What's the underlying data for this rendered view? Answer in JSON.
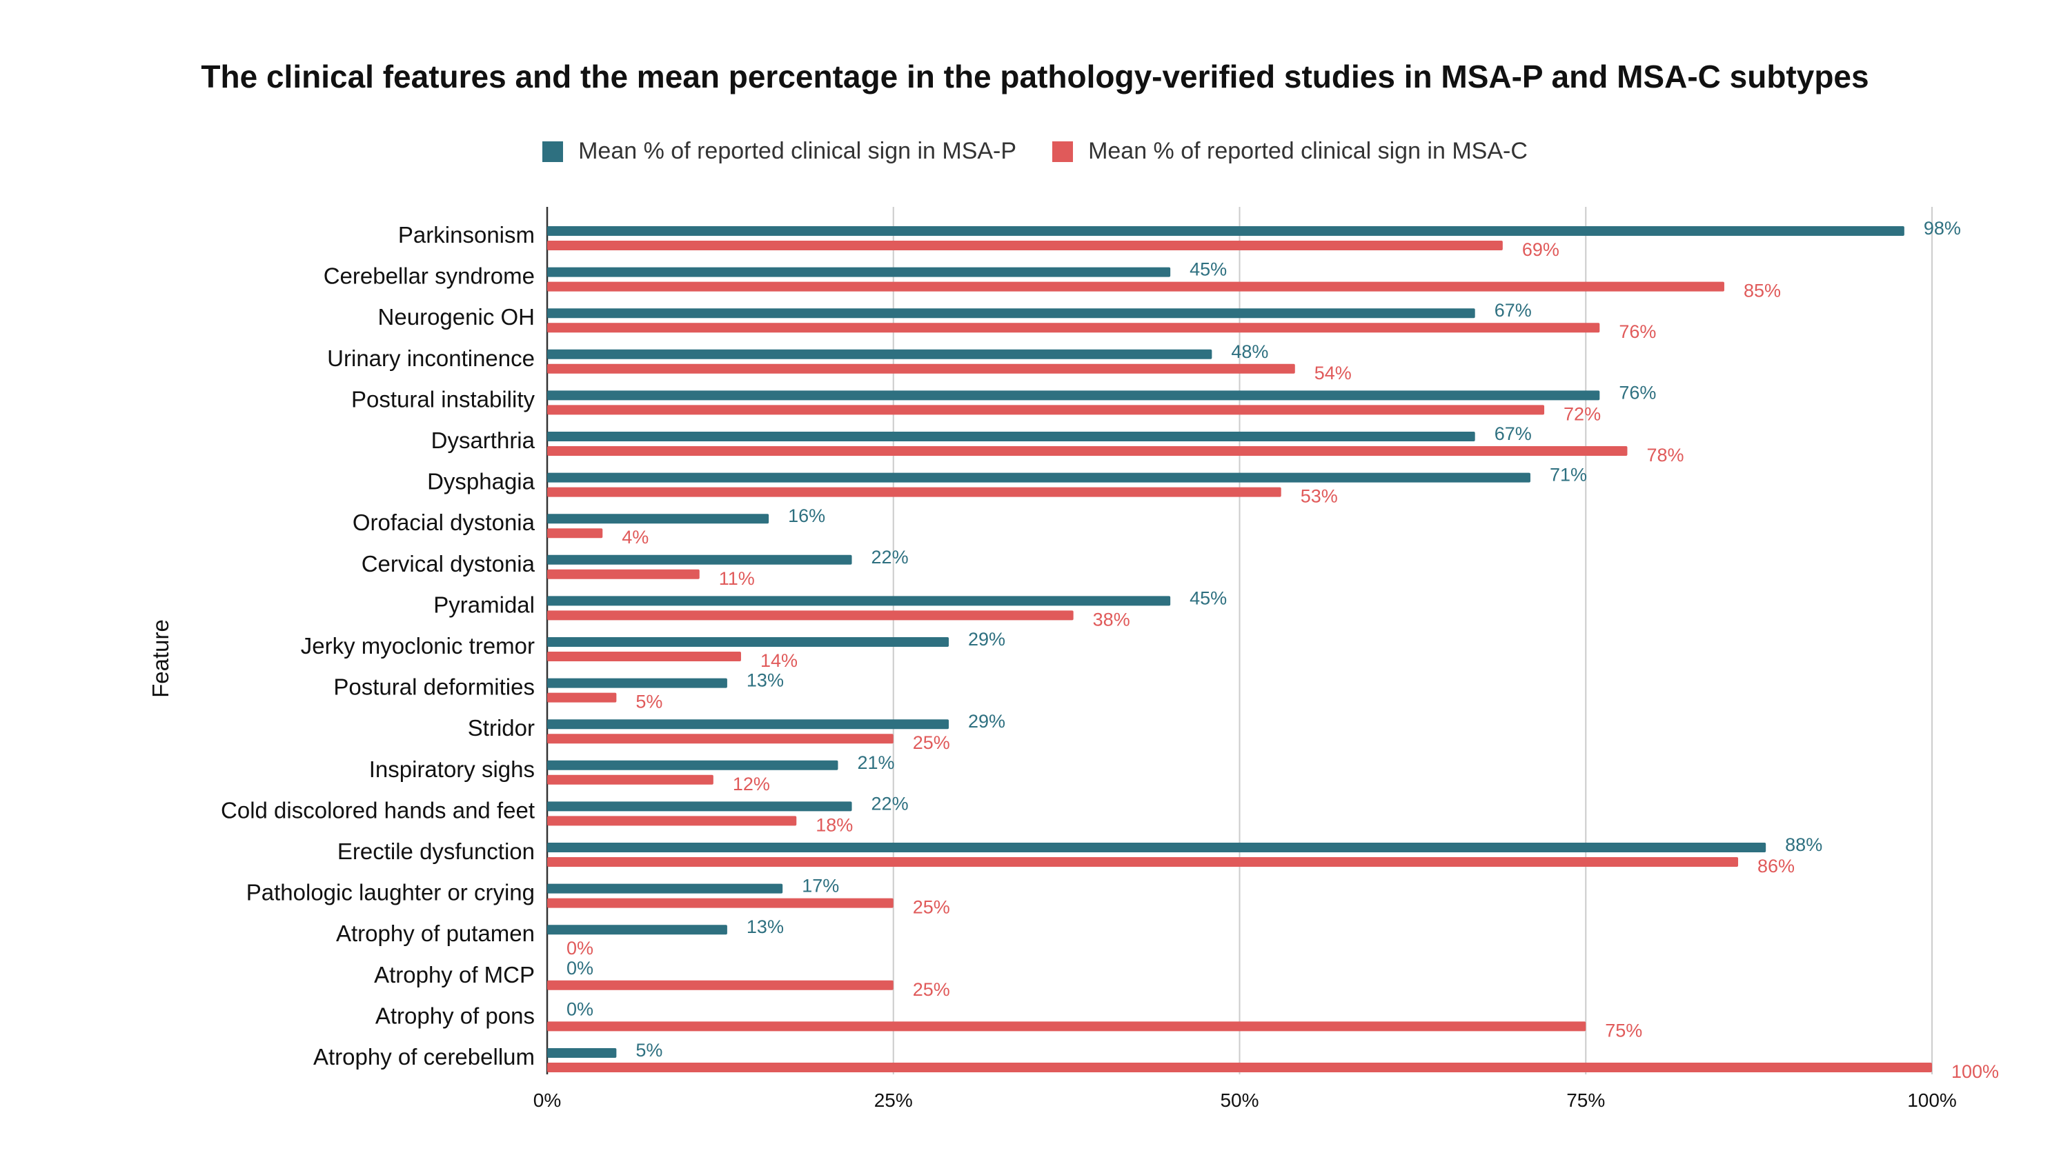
{
  "chart_data": {
    "type": "bar",
    "orientation": "horizontal",
    "title": "The clinical features and the mean percentage in the pathology-verified studies in MSA-P and MSA-C subtypes",
    "ylabel": "Feature",
    "xlabel": "",
    "xlim": [
      0,
      100
    ],
    "xticks": [
      "0%",
      "25%",
      "50%",
      "75%",
      "100%"
    ],
    "grid": true,
    "legend_position": "top-center",
    "categories": [
      "Parkinsonism",
      "Cerebellar syndrome",
      "Neurogenic OH",
      "Urinary incontinence",
      "Postural instability",
      "Dysarthria",
      "Dysphagia",
      "Orofacial dystonia",
      "Cervical dystonia",
      "Pyramidal",
      "Jerky myoclonic tremor",
      "Postural deformities",
      "Stridor",
      "Inspiratory sighs",
      "Cold discolored hands and feet",
      "Erectile dysfunction",
      "Pathologic laughter or crying",
      "Atrophy of putamen",
      "Atrophy of MCP",
      "Atrophy of pons",
      "Atrophy of cerebellum"
    ],
    "series": [
      {
        "name": "Mean % of reported clinical sign in MSA-P",
        "color": "#2e7080",
        "values": [
          98,
          45,
          67,
          48,
          76,
          67,
          71,
          16,
          22,
          45,
          29,
          13,
          29,
          21,
          22,
          88,
          17,
          13,
          0,
          0,
          5
        ],
        "labels": [
          "98%",
          "45%",
          "67%",
          "48%",
          "76%",
          "67%",
          "71%",
          "16%",
          "22%",
          "45%",
          "29%",
          "13%",
          "29%",
          "21%",
          "22%",
          "88%",
          "17%",
          "13%",
          "0%",
          "0%",
          "5%"
        ]
      },
      {
        "name": "Mean % of reported clinical sign in MSA-C",
        "color": "#e05a5a",
        "values": [
          69,
          85,
          76,
          54,
          72,
          78,
          53,
          4,
          11,
          38,
          14,
          5,
          25,
          12,
          18,
          86,
          25,
          0,
          25,
          75,
          100
        ],
        "labels": [
          "69%",
          "85%",
          "76%",
          "54%",
          "72%",
          "78%",
          "53%",
          "4%",
          "11%",
          "38%",
          "14%",
          "5%",
          "25%",
          "12%",
          "18%",
          "86%",
          "25%",
          "0%",
          "25%",
          "75%",
          "100%"
        ]
      }
    ]
  }
}
